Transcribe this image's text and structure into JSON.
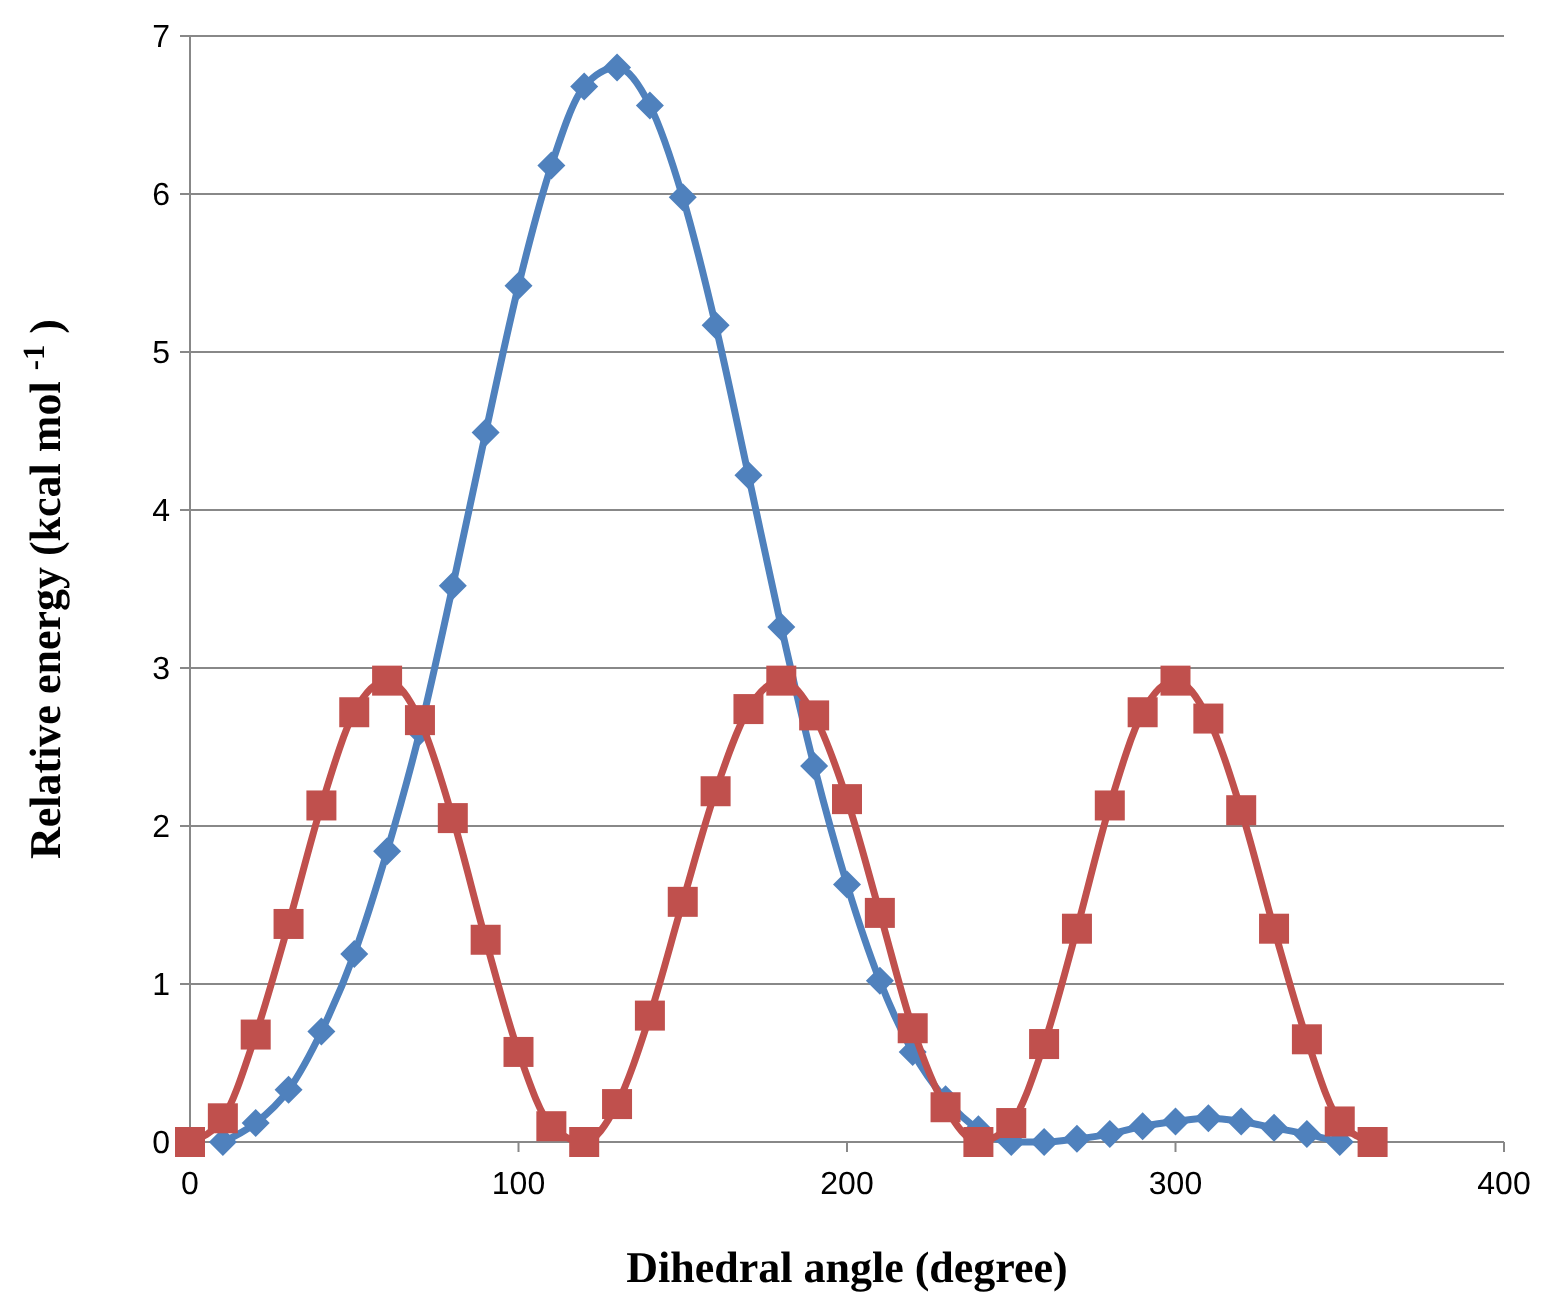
{
  "chart_data": {
    "type": "line",
    "xlabel": "Dihedral angle (degree)",
    "ylabel": "Relative energy (kcal mol $^{-1}$ )",
    "xlim": [
      0,
      400
    ],
    "xticks": [
      0,
      100,
      200,
      300,
      400
    ],
    "ylim": [
      0,
      7
    ],
    "yticks": [
      0,
      1,
      2,
      3,
      4,
      5,
      6,
      7
    ],
    "grid": "y",
    "line_style": "solid",
    "series": [
      {
        "color": "#4f81bd",
        "marker": "diamond",
        "x": [
          10,
          20,
          30,
          40,
          50,
          60,
          70,
          80,
          90,
          100,
          110,
          120,
          130,
          140,
          150,
          160,
          170,
          180,
          190,
          200,
          210,
          220,
          230,
          240,
          250,
          260,
          270,
          280,
          290,
          300,
          310,
          320,
          330,
          340,
          350
        ],
        "values": [
          0.0,
          0.12,
          0.33,
          0.7,
          1.19,
          1.84,
          2.6,
          3.52,
          4.49,
          5.42,
          6.18,
          6.68,
          6.8,
          6.56,
          5.98,
          5.17,
          4.22,
          3.26,
          2.38,
          1.63,
          1.02,
          0.57,
          0.27,
          0.08,
          0.0,
          0.0,
          0.02,
          0.05,
          0.1,
          0.13,
          0.15,
          0.13,
          0.09,
          0.05,
          0.0
        ]
      },
      {
        "color": "#c0504d",
        "marker": "square",
        "x": [
          0,
          10,
          20,
          30,
          40,
          50,
          60,
          70,
          80,
          90,
          100,
          110,
          120,
          130,
          140,
          150,
          160,
          170,
          180,
          190,
          200,
          210,
          220,
          230,
          240,
          250,
          260,
          270,
          280,
          290,
          300,
          310,
          320,
          330,
          340,
          350,
          360
        ],
        "values": [
          0,
          0.15,
          0.68,
          1.38,
          2.13,
          2.72,
          2.92,
          2.67,
          2.05,
          1.28,
          0.57,
          0.1,
          0,
          0.24,
          0.8,
          1.52,
          2.22,
          2.74,
          2.92,
          2.7,
          2.17,
          1.45,
          0.72,
          0.22,
          0,
          0.12,
          0.62,
          1.35,
          2.13,
          2.72,
          2.92,
          2.68,
          2.1,
          1.35,
          0.65,
          0.13,
          0
        ]
      }
    ]
  }
}
